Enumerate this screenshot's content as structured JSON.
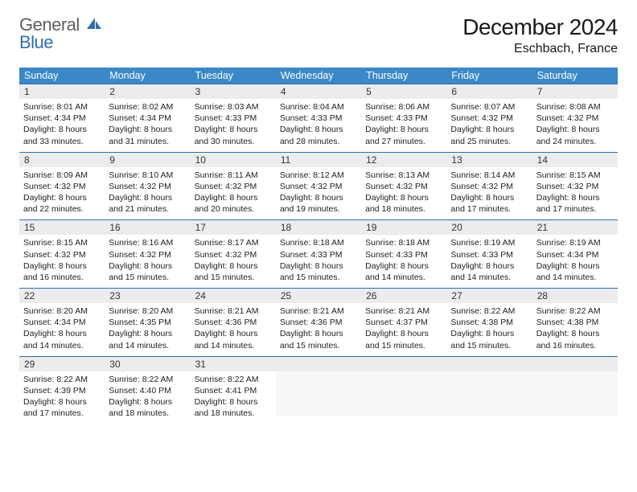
{
  "logo": {
    "top": "General",
    "bottom": "Blue",
    "gray": "#5f5f5f",
    "blue": "#2f6fb0",
    "icon_fill": "#2f6fb0"
  },
  "title": "December 2024",
  "location": "Eschbach, France",
  "colors": {
    "header_bg": "#3b87c8",
    "header_text": "#ffffff",
    "daynum_bg": "#ececec",
    "row_border": "#2f6fb0",
    "body_text": "#222222",
    "empty_bg": "#f7f7f7"
  },
  "weekdays": [
    "Sunday",
    "Monday",
    "Tuesday",
    "Wednesday",
    "Thursday",
    "Friday",
    "Saturday"
  ],
  "days": [
    {
      "n": 1,
      "sunrise": "8:01 AM",
      "sunset": "4:34 PM",
      "dl": "8 hours and 33 minutes."
    },
    {
      "n": 2,
      "sunrise": "8:02 AM",
      "sunset": "4:34 PM",
      "dl": "8 hours and 31 minutes."
    },
    {
      "n": 3,
      "sunrise": "8:03 AM",
      "sunset": "4:33 PM",
      "dl": "8 hours and 30 minutes."
    },
    {
      "n": 4,
      "sunrise": "8:04 AM",
      "sunset": "4:33 PM",
      "dl": "8 hours and 28 minutes."
    },
    {
      "n": 5,
      "sunrise": "8:06 AM",
      "sunset": "4:33 PM",
      "dl": "8 hours and 27 minutes."
    },
    {
      "n": 6,
      "sunrise": "8:07 AM",
      "sunset": "4:32 PM",
      "dl": "8 hours and 25 minutes."
    },
    {
      "n": 7,
      "sunrise": "8:08 AM",
      "sunset": "4:32 PM",
      "dl": "8 hours and 24 minutes."
    },
    {
      "n": 8,
      "sunrise": "8:09 AM",
      "sunset": "4:32 PM",
      "dl": "8 hours and 22 minutes."
    },
    {
      "n": 9,
      "sunrise": "8:10 AM",
      "sunset": "4:32 PM",
      "dl": "8 hours and 21 minutes."
    },
    {
      "n": 10,
      "sunrise": "8:11 AM",
      "sunset": "4:32 PM",
      "dl": "8 hours and 20 minutes."
    },
    {
      "n": 11,
      "sunrise": "8:12 AM",
      "sunset": "4:32 PM",
      "dl": "8 hours and 19 minutes."
    },
    {
      "n": 12,
      "sunrise": "8:13 AM",
      "sunset": "4:32 PM",
      "dl": "8 hours and 18 minutes."
    },
    {
      "n": 13,
      "sunrise": "8:14 AM",
      "sunset": "4:32 PM",
      "dl": "8 hours and 17 minutes."
    },
    {
      "n": 14,
      "sunrise": "8:15 AM",
      "sunset": "4:32 PM",
      "dl": "8 hours and 17 minutes."
    },
    {
      "n": 15,
      "sunrise": "8:15 AM",
      "sunset": "4:32 PM",
      "dl": "8 hours and 16 minutes."
    },
    {
      "n": 16,
      "sunrise": "8:16 AM",
      "sunset": "4:32 PM",
      "dl": "8 hours and 15 minutes."
    },
    {
      "n": 17,
      "sunrise": "8:17 AM",
      "sunset": "4:32 PM",
      "dl": "8 hours and 15 minutes."
    },
    {
      "n": 18,
      "sunrise": "8:18 AM",
      "sunset": "4:33 PM",
      "dl": "8 hours and 15 minutes."
    },
    {
      "n": 19,
      "sunrise": "8:18 AM",
      "sunset": "4:33 PM",
      "dl": "8 hours and 14 minutes."
    },
    {
      "n": 20,
      "sunrise": "8:19 AM",
      "sunset": "4:33 PM",
      "dl": "8 hours and 14 minutes."
    },
    {
      "n": 21,
      "sunrise": "8:19 AM",
      "sunset": "4:34 PM",
      "dl": "8 hours and 14 minutes."
    },
    {
      "n": 22,
      "sunrise": "8:20 AM",
      "sunset": "4:34 PM",
      "dl": "8 hours and 14 minutes."
    },
    {
      "n": 23,
      "sunrise": "8:20 AM",
      "sunset": "4:35 PM",
      "dl": "8 hours and 14 minutes."
    },
    {
      "n": 24,
      "sunrise": "8:21 AM",
      "sunset": "4:36 PM",
      "dl": "8 hours and 14 minutes."
    },
    {
      "n": 25,
      "sunrise": "8:21 AM",
      "sunset": "4:36 PM",
      "dl": "8 hours and 15 minutes."
    },
    {
      "n": 26,
      "sunrise": "8:21 AM",
      "sunset": "4:37 PM",
      "dl": "8 hours and 15 minutes."
    },
    {
      "n": 27,
      "sunrise": "8:22 AM",
      "sunset": "4:38 PM",
      "dl": "8 hours and 15 minutes."
    },
    {
      "n": 28,
      "sunrise": "8:22 AM",
      "sunset": "4:38 PM",
      "dl": "8 hours and 16 minutes."
    },
    {
      "n": 29,
      "sunrise": "8:22 AM",
      "sunset": "4:39 PM",
      "dl": "8 hours and 17 minutes."
    },
    {
      "n": 30,
      "sunrise": "8:22 AM",
      "sunset": "4:40 PM",
      "dl": "8 hours and 18 minutes."
    },
    {
      "n": 31,
      "sunrise": "8:22 AM",
      "sunset": "4:41 PM",
      "dl": "8 hours and 18 minutes."
    }
  ],
  "labels": {
    "sunrise": "Sunrise:",
    "sunset": "Sunset:",
    "daylight": "Daylight:"
  },
  "layout": {
    "columns": 7,
    "start_offset": 0,
    "total_cells": 35
  }
}
